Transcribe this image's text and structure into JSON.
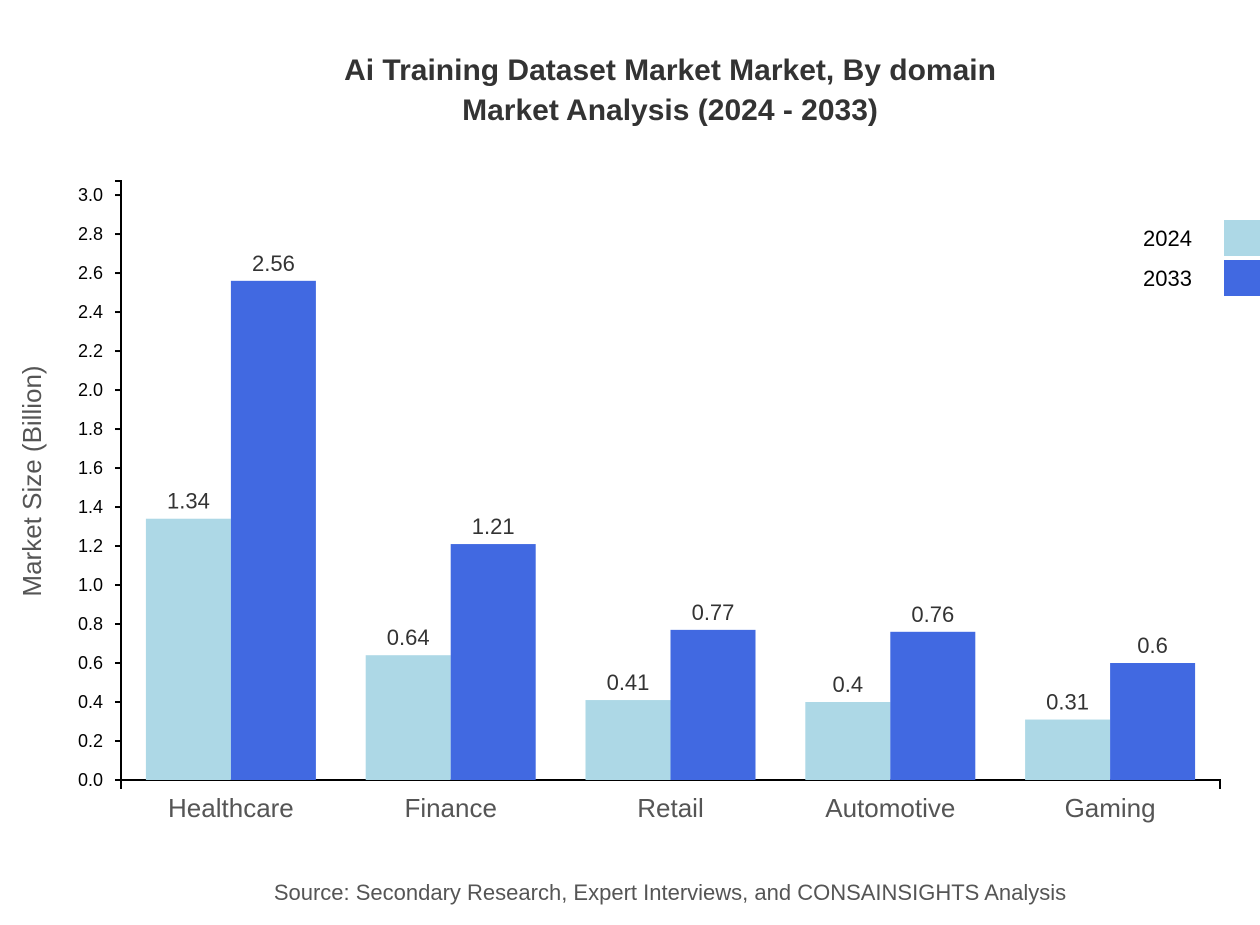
{
  "chart_data": {
    "type": "bar",
    "title": "Ai Training Dataset Market Market, By domain",
    "subtitle": "Market Analysis (2024 - 2033)",
    "xlabel": "",
    "ylabel": "Market Size (Billion)",
    "ylim": [
      0,
      3.072
    ],
    "yticks": [
      "0.0",
      "0.2",
      "0.4",
      "0.6",
      "0.8",
      "1.0",
      "1.2",
      "1.4",
      "1.6",
      "1.8",
      "2.0",
      "2.2",
      "2.4",
      "2.6",
      "2.8",
      "3.0"
    ],
    "categories": [
      "Healthcare",
      "Finance",
      "Retail",
      "Automotive",
      "Gaming"
    ],
    "series": [
      {
        "name": "2024",
        "color": "#add8e6",
        "values": [
          1.34,
          0.64,
          0.41,
          0.4,
          0.31
        ]
      },
      {
        "name": "2033",
        "color": "#4169e1",
        "values": [
          2.56,
          1.21,
          0.77,
          0.76,
          0.6
        ]
      }
    ],
    "grid": false,
    "legend": "top-right",
    "source": "Source: Secondary Research, Expert Interviews, and CONSAINSIGHTS Analysis"
  }
}
